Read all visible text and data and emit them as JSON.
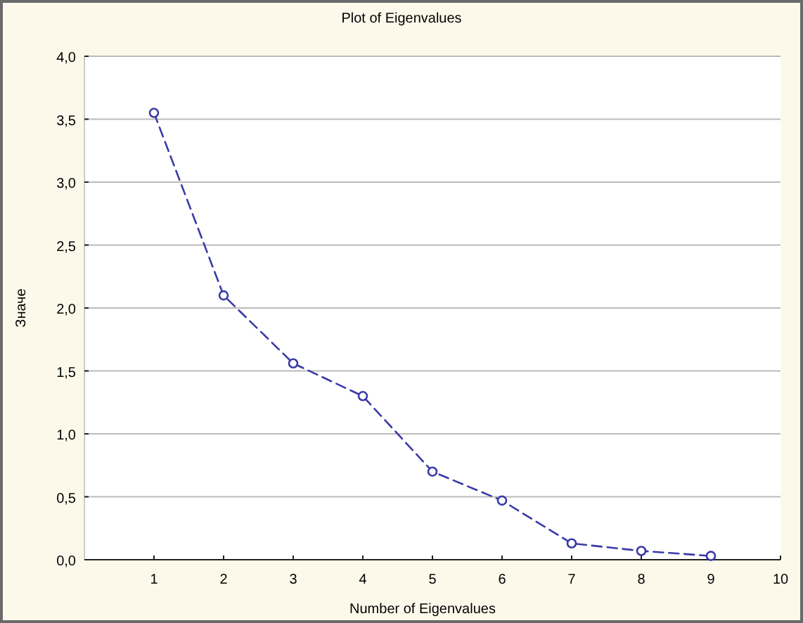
{
  "chart_data": {
    "type": "line",
    "title": "Plot of Eigenvalues",
    "xlabel": "Number of Eigenvalues",
    "ylabel": "Значе",
    "x": [
      1,
      2,
      3,
      4,
      5,
      6,
      7,
      8,
      9
    ],
    "series": [
      {
        "color": "#3a3aa8",
        "values": [
          3.55,
          2.1,
          1.56,
          1.3,
          0.7,
          0.47,
          0.13,
          0.07,
          0.03
        ]
      }
    ],
    "xlim": [
      0,
      10
    ],
    "xticks": [
      1,
      2,
      3,
      4,
      5,
      6,
      7,
      8,
      9,
      10
    ],
    "ylim": [
      0,
      4
    ],
    "yticks": [
      {
        "value": 0,
        "label": "0,0"
      },
      {
        "value": 0.5,
        "label": "0,5"
      },
      {
        "value": 1,
        "label": "1,0"
      },
      {
        "value": 1.5,
        "label": "1,5"
      },
      {
        "value": 2,
        "label": "2,0"
      },
      {
        "value": 2.5,
        "label": "2,5"
      },
      {
        "value": 3,
        "label": "3,0"
      },
      {
        "value": 3.5,
        "label": "3,5"
      },
      {
        "value": 4,
        "label": "4,0"
      }
    ],
    "marker": "circle",
    "line_style": "dashed",
    "grid": "y"
  }
}
